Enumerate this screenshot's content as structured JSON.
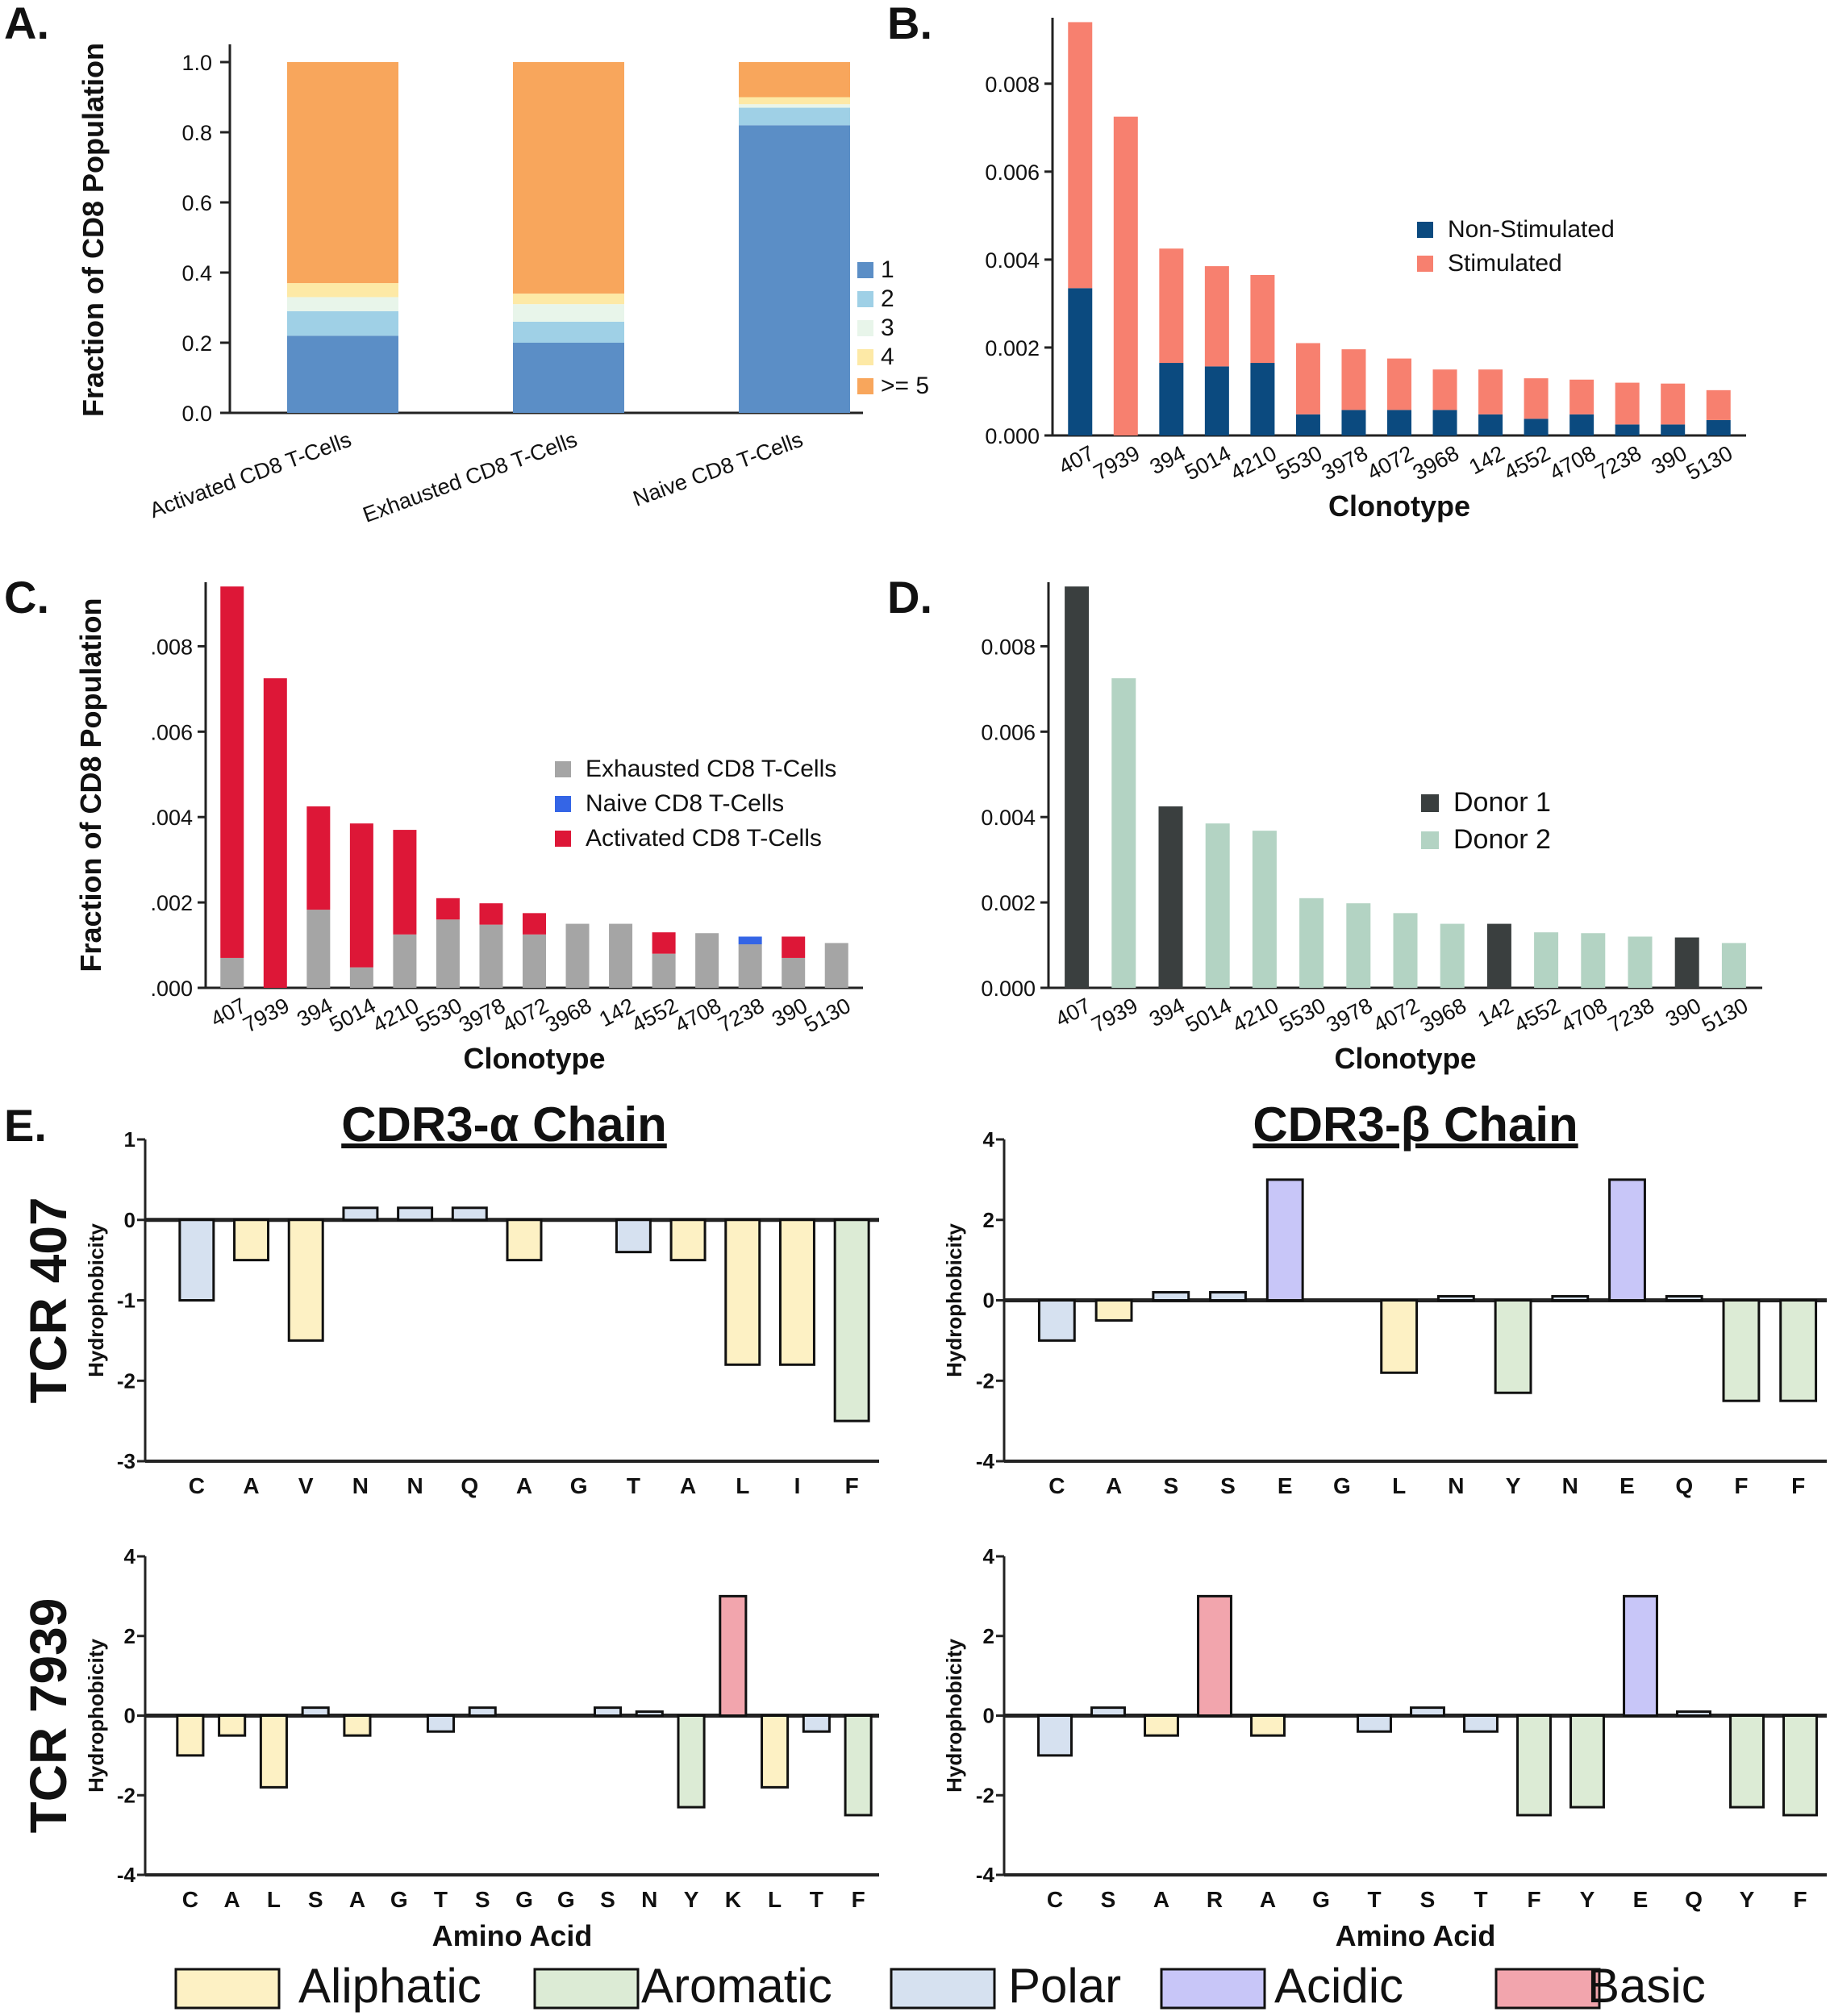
{
  "panel_labels": {
    "a": "A.",
    "b": "B.",
    "c": "C.",
    "d": "D.",
    "e": "E."
  },
  "colors": {
    "sA_1": "#5b8ec6",
    "sA_2": "#9fd0e6",
    "sA_3": "#e8f5ea",
    "sA_4": "#fde9a6",
    "sA_5": "#f8a65c",
    "non_stim": "#0b4a7f",
    "stim": "#f7806f",
    "exhausted": "#a5a5a5",
    "naive": "#3465e6",
    "activated": "#dd1737",
    "donor1": "#3a3f3f",
    "donor2": "#b3d3c3",
    "aliphatic": "#fdf1c4",
    "aromatic": "#dcebd5",
    "polar": "#d6e1f0",
    "acidic": "#c8c6f8",
    "basic": "#f2a5ad"
  },
  "chart_data": [
    {
      "id": "A",
      "type": "bar",
      "stacked": true,
      "categories": [
        "Activated CD8 T-Cells",
        "Exhausted CD8 T-Cells",
        "Naive CD8 T-Cells"
      ],
      "series": [
        {
          "name": "1",
          "values": [
            0.22,
            0.2,
            0.82
          ]
        },
        {
          "name": "2",
          "values": [
            0.07,
            0.06,
            0.05
          ]
        },
        {
          "name": "3",
          "values": [
            0.04,
            0.05,
            0.01
          ]
        },
        {
          "name": "4",
          "values": [
            0.04,
            0.03,
            0.02
          ]
        },
        {
          "name": ">= 5",
          "values": [
            0.63,
            0.66,
            0.1
          ]
        }
      ],
      "ylabel": "Fraction of CD8 Population",
      "ylim": [
        0,
        1.0
      ],
      "yticks": [
        "0.0",
        "0.2",
        "0.4",
        "0.6",
        "0.8",
        "1.0"
      ],
      "legend": "right"
    },
    {
      "id": "B",
      "type": "bar",
      "stacked": true,
      "categories": [
        "407",
        "7939",
        "394",
        "5014",
        "4210",
        "5530",
        "3978",
        "4072",
        "3968",
        "142",
        "4552",
        "4708",
        "7238",
        "390",
        "5130"
      ],
      "series": [
        {
          "name": "Non-Stimulated",
          "values": [
            0.00335,
            0,
            0.00165,
            0.00157,
            0.00165,
            0.00048,
            0.00058,
            0.00058,
            0.00058,
            0.00048,
            0.00038,
            0.00048,
            0.00025,
            0.00025,
            0.00035
          ]
        },
        {
          "name": "Stimulated",
          "values": [
            0.00605,
            0.00725,
            0.0026,
            0.00228,
            0.002,
            0.00162,
            0.00138,
            0.00117,
            0.00092,
            0.00102,
            0.00092,
            0.00079,
            0.00095,
            0.00093,
            0.00068
          ]
        }
      ],
      "xlabel": "Clonotype",
      "ylim": [
        0,
        0.0095
      ],
      "yticks": [
        "0.000",
        "0.002",
        "0.004",
        "0.006",
        "0.008"
      ],
      "legend": "center-right"
    },
    {
      "id": "C",
      "type": "bar",
      "stacked": true,
      "categories": [
        "407",
        "7939",
        "394",
        "5014",
        "4210",
        "5530",
        "3978",
        "4072",
        "3968",
        "142",
        "4552",
        "4708",
        "7238",
        "390",
        "5130"
      ],
      "series": [
        {
          "name": "Exhausted CD8 T-Cells",
          "values": [
            0.0007,
            0,
            0.00183,
            0.00048,
            0.00125,
            0.0016,
            0.00148,
            0.00125,
            0.0015,
            0.0015,
            0.0008,
            0.00128,
            0.00102,
            0.0007,
            0.00105
          ]
        },
        {
          "name": "Naive CD8 T-Cells",
          "values": [
            0,
            0,
            0,
            0,
            0,
            0,
            0,
            0,
            0,
            0,
            0,
            0,
            0.00018,
            0,
            0
          ]
        },
        {
          "name": "Activated CD8 T-Cells",
          "values": [
            0.0087,
            0.00725,
            0.00242,
            0.00337,
            0.00245,
            0.0005,
            0.0005,
            0.0005,
            0,
            0,
            0.0005,
            0,
            0,
            0.0005,
            0
          ]
        }
      ],
      "xlabel": "Clonotype",
      "ylabel": "Fraction of CD8 Population",
      "ylim": [
        0,
        0.0095
      ],
      "yticks": [
        ".000",
        ".002",
        ".004",
        ".006",
        ".008"
      ],
      "legend": "center-right"
    },
    {
      "id": "D",
      "type": "bar",
      "stacked": false,
      "categories": [
        "407",
        "7939",
        "394",
        "5014",
        "4210",
        "5530",
        "3978",
        "4072",
        "3968",
        "142",
        "4552",
        "4708",
        "7238",
        "390",
        "5130"
      ],
      "values": [
        0.0094,
        0.00725,
        0.00425,
        0.00385,
        0.00368,
        0.0021,
        0.00198,
        0.00175,
        0.0015,
        0.0015,
        0.0013,
        0.00128,
        0.0012,
        0.00118,
        0.00105
      ],
      "donor": [
        1,
        2,
        1,
        2,
        2,
        2,
        2,
        2,
        2,
        1,
        2,
        2,
        2,
        1,
        2
      ],
      "legend_entries": [
        "Donor 1",
        "Donor 2"
      ],
      "xlabel": "Clonotype",
      "ylim": [
        0,
        0.0095
      ],
      "yticks": [
        "0.000",
        "0.002",
        "0.004",
        "0.006",
        "0.008"
      ],
      "legend": "center-right"
    },
    {
      "id": "E1",
      "type": "bar",
      "title": "CDR3-α Chain",
      "row_label": "TCR 407",
      "categories": [
        "C",
        "A",
        "V",
        "N",
        "N",
        "Q",
        "A",
        "G",
        "T",
        "A",
        "L",
        "I",
        "F"
      ],
      "values": [
        -1,
        -0.5,
        -1.5,
        0.15,
        0.15,
        0.15,
        -0.5,
        0,
        -0.4,
        -0.5,
        -1.8,
        -1.8,
        -2.5
      ],
      "classes": [
        "polar",
        "aliphatic",
        "aliphatic",
        "polar",
        "polar",
        "polar",
        "aliphatic",
        "aliphatic",
        "polar",
        "aliphatic",
        "aliphatic",
        "aliphatic",
        "aromatic"
      ],
      "ylabel": "Hydrophobicity",
      "ylim": [
        -3,
        1
      ],
      "yticks": [
        "-3",
        "-2",
        "-1",
        "0",
        "1"
      ]
    },
    {
      "id": "E2",
      "type": "bar",
      "title": "CDR3-β Chain",
      "categories": [
        "C",
        "A",
        "S",
        "S",
        "E",
        "G",
        "L",
        "N",
        "Y",
        "N",
        "E",
        "Q",
        "F",
        "F"
      ],
      "values": [
        -1,
        -0.5,
        0.2,
        0.2,
        3,
        0,
        -1.8,
        0.1,
        -2.3,
        0.1,
        3,
        0.1,
        -2.5,
        -2.5
      ],
      "classes": [
        "polar",
        "aliphatic",
        "polar",
        "polar",
        "acidic",
        "aliphatic",
        "aliphatic",
        "polar",
        "aromatic",
        "polar",
        "acidic",
        "polar",
        "aromatic",
        "aromatic"
      ],
      "ylabel": "Hydrophobicity",
      "ylim": [
        -4,
        4
      ],
      "yticks": [
        "-4",
        "-2",
        "0",
        "2",
        "4"
      ]
    },
    {
      "id": "E3",
      "type": "bar",
      "row_label": "TCR 7939",
      "categories": [
        "C",
        "A",
        "L",
        "S",
        "A",
        "G",
        "T",
        "S",
        "G",
        "G",
        "S",
        "N",
        "Y",
        "K",
        "L",
        "T",
        "F"
      ],
      "values": [
        -1,
        -0.5,
        -1.8,
        0.2,
        -0.5,
        0,
        -0.4,
        0.2,
        0,
        0,
        0.2,
        0.1,
        -2.3,
        3,
        -1.8,
        -0.4,
        -2.5
      ],
      "classes": [
        "aliphatic",
        "aliphatic",
        "aliphatic",
        "polar",
        "aliphatic",
        "aliphatic",
        "polar",
        "polar",
        "aliphatic",
        "aliphatic",
        "polar",
        "polar",
        "aromatic",
        "basic",
        "aliphatic",
        "polar",
        "aromatic"
      ],
      "xlabel": "Amino Acid",
      "ylabel": "Hydrophobicity",
      "ylim": [
        -4,
        4
      ],
      "yticks": [
        "-4",
        "-2",
        "0",
        "2",
        "4"
      ]
    },
    {
      "id": "E4",
      "type": "bar",
      "categories": [
        "C",
        "S",
        "A",
        "R",
        "A",
        "G",
        "T",
        "S",
        "T",
        "F",
        "Y",
        "E",
        "Q",
        "Y",
        "F"
      ],
      "values": [
        -1,
        0.2,
        -0.5,
        3,
        -0.5,
        0,
        -0.4,
        0.2,
        -0.4,
        -2.5,
        -2.3,
        3,
        0.1,
        -2.3,
        -2.5
      ],
      "classes": [
        "polar",
        "polar",
        "aliphatic",
        "basic",
        "aliphatic",
        "aliphatic",
        "polar",
        "polar",
        "polar",
        "aromatic",
        "aromatic",
        "acidic",
        "polar",
        "aromatic",
        "aromatic"
      ],
      "xlabel": "Amino Acid",
      "ylabel": "Hydrophobicity",
      "ylim": [
        -4,
        4
      ],
      "yticks": [
        "-4",
        "-2",
        "0",
        "2",
        "4"
      ]
    }
  ],
  "category_legend": [
    {
      "key": "aliphatic",
      "label": "Aliphatic"
    },
    {
      "key": "aromatic",
      "label": "Aromatic"
    },
    {
      "key": "polar",
      "label": "Polar"
    },
    {
      "key": "acidic",
      "label": "Acidic"
    },
    {
      "key": "basic",
      "label": "Basic"
    }
  ]
}
